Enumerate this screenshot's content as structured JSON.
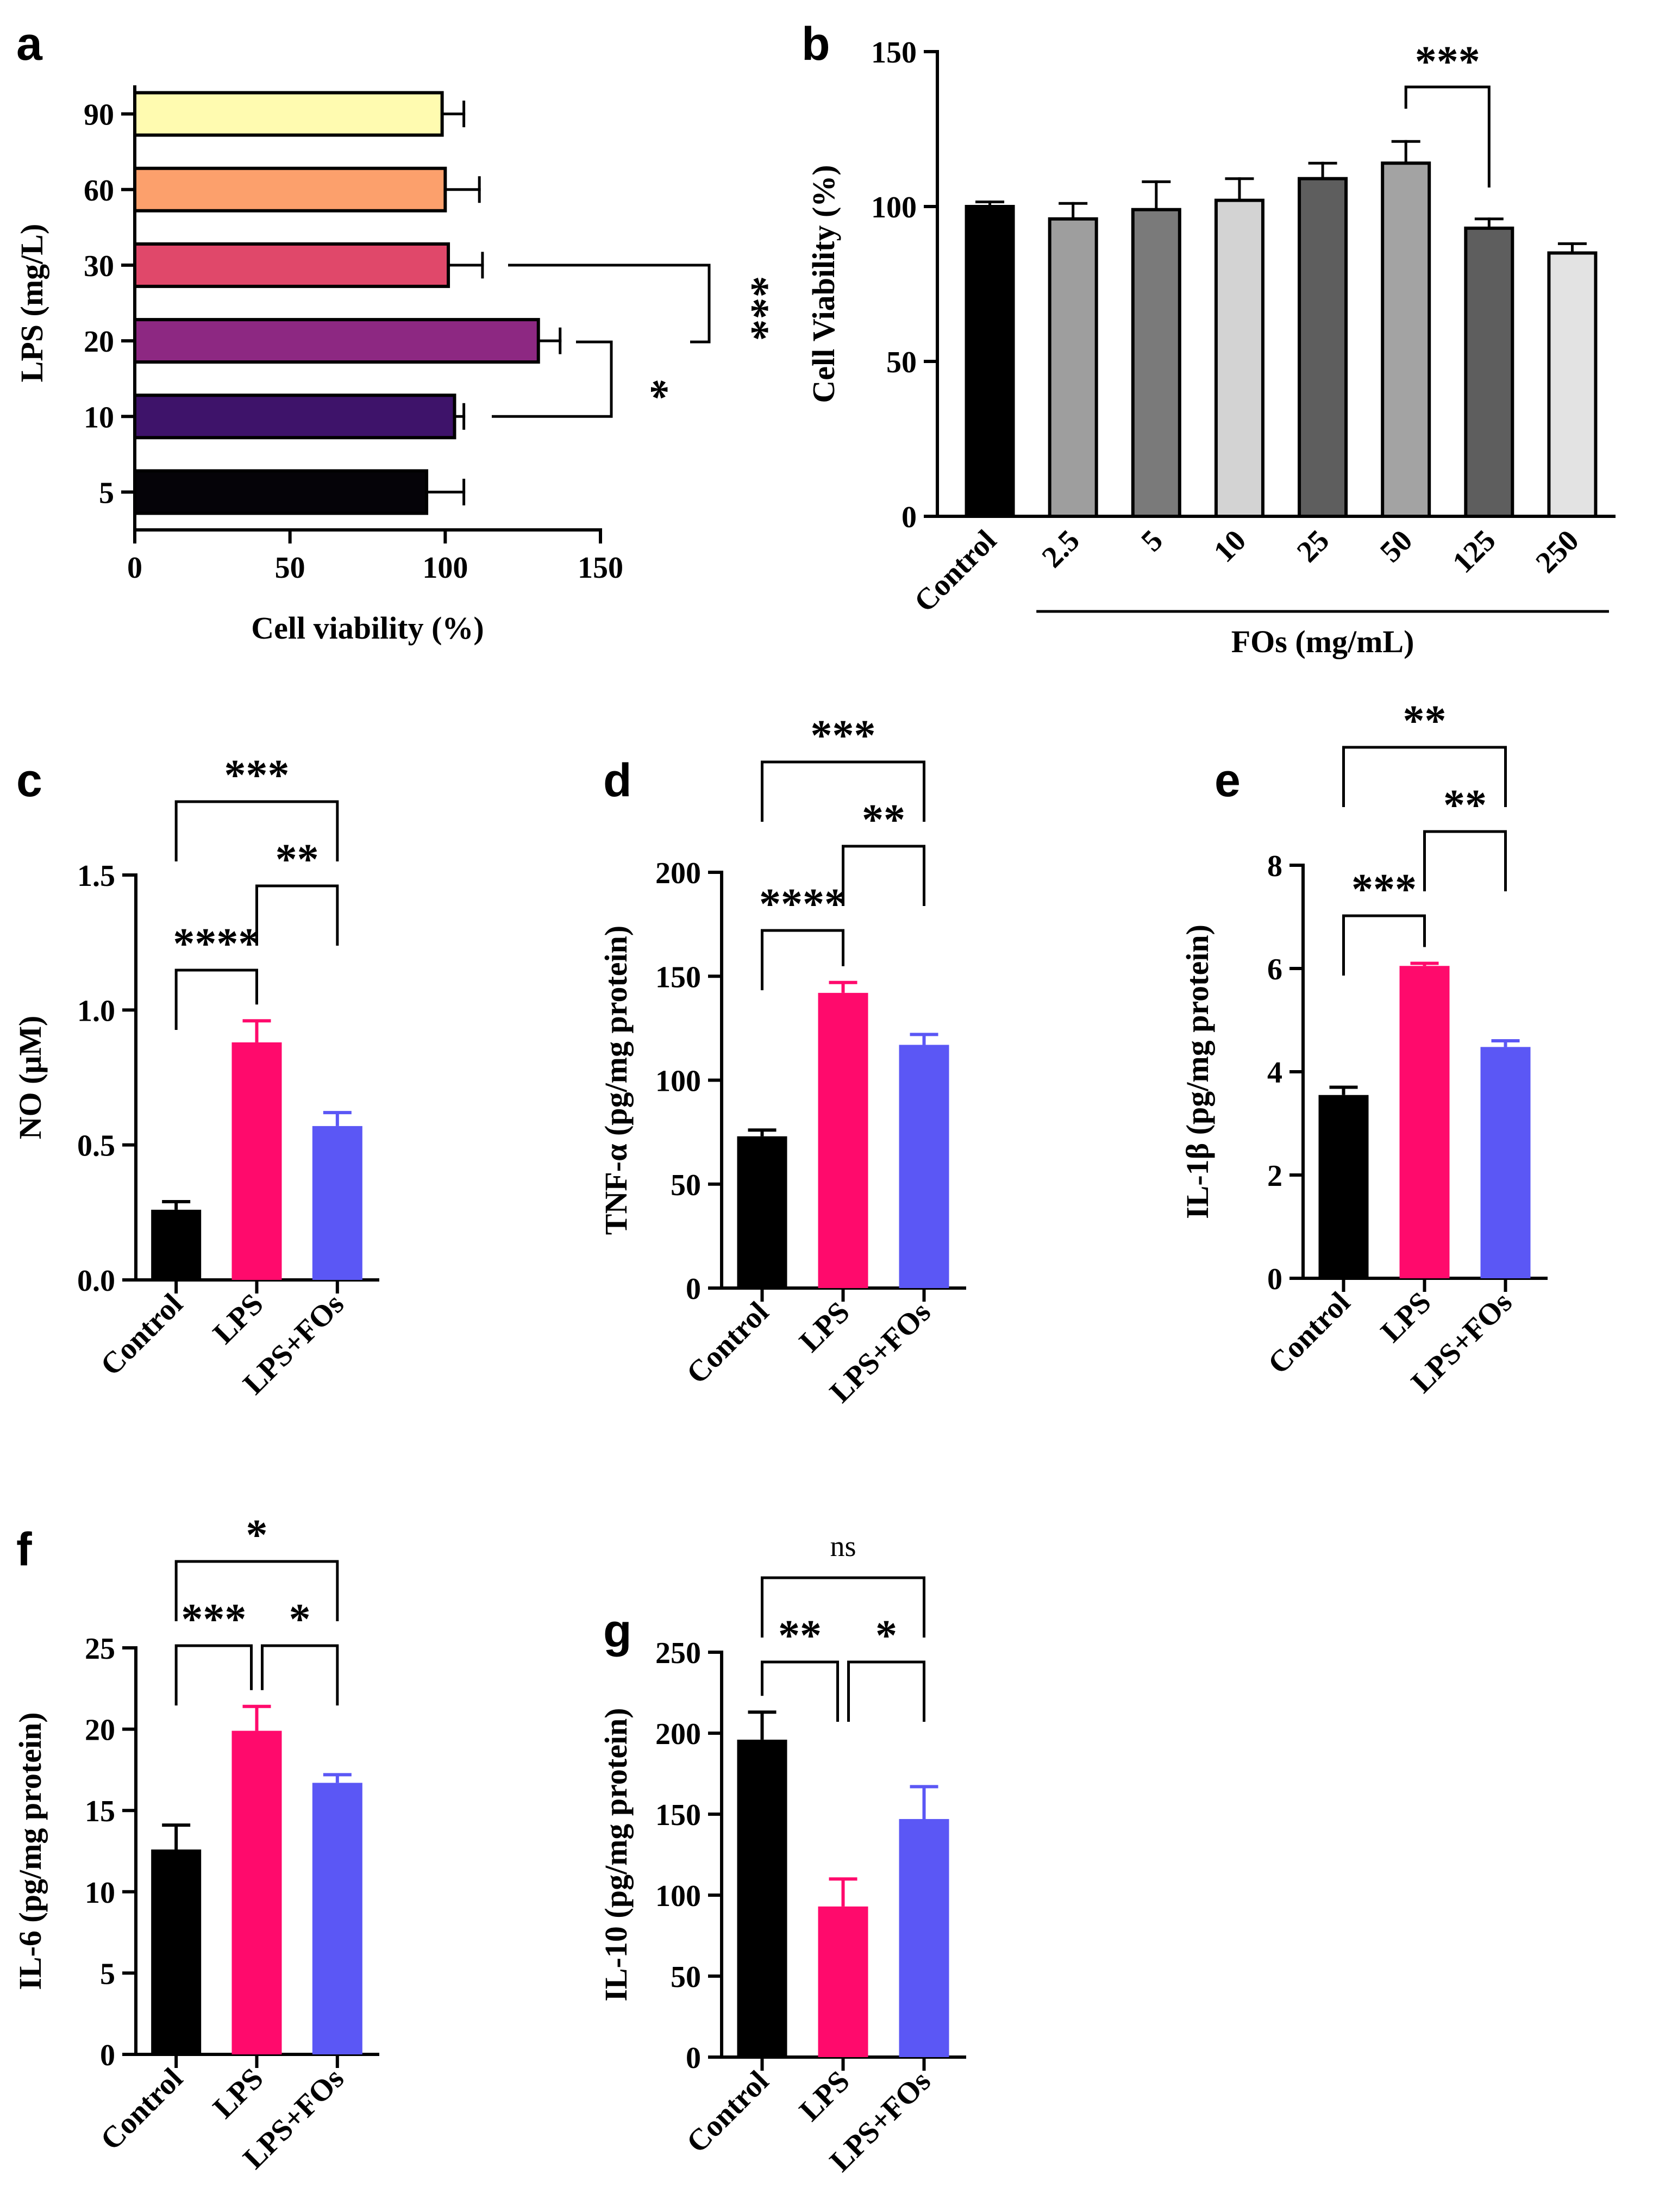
{
  "chart_data": [
    {
      "panel": "a",
      "type": "bar",
      "orientation": "horizontal",
      "title": "",
      "xlabel": "Cell viability (%)",
      "ylabel": "LPS (mg/L)",
      "xlim": [
        0,
        150
      ],
      "xticks": [
        "0",
        "50",
        "100",
        "150"
      ],
      "categories": [
        "90",
        "60",
        "30",
        "20",
        "10",
        "5"
      ],
      "values": [
        99,
        100,
        101,
        130,
        103,
        94
      ],
      "errors": [
        7,
        11,
        11,
        7,
        3,
        12
      ],
      "colors": [
        "#FFFBB0",
        "#FCA06C",
        "#E0486A",
        "#8D2882",
        "#3E136A",
        "#050308"
      ],
      "significance": [
        {
          "from": "30",
          "to": "20",
          "label": "***"
        },
        {
          "from": "20",
          "to": "10",
          "label": "*"
        }
      ]
    },
    {
      "panel": "b",
      "type": "bar",
      "title": "",
      "xlabel": "FOs (mg/mL)",
      "ylabel": "Cell Viability (%)",
      "ylim": [
        0,
        150
      ],
      "yticks": [
        "0",
        "50",
        "100",
        "150"
      ],
      "categories": [
        "Control",
        "2.5",
        "5",
        "10",
        "25",
        "50",
        "125",
        "250"
      ],
      "values": [
        100,
        96,
        99,
        102,
        109,
        114,
        93,
        85
      ],
      "errors": [
        1.5,
        5,
        9,
        7,
        5,
        7,
        3,
        3
      ],
      "colors": [
        "#000000",
        "#9E9E9E",
        "#7A7A7A",
        "#D3D3D3",
        "#5E5E5E",
        "#A3A3A3",
        "#5E5E5E",
        "#E3E3E3"
      ],
      "significance": [
        {
          "from": "50",
          "to": "125",
          "label": "***"
        }
      ]
    },
    {
      "panel": "c",
      "type": "bar",
      "title": "",
      "ylabel": "NO (μM)",
      "ylim": [
        0,
        1.5
      ],
      "yticks": [
        "0.0",
        "0.5",
        "1.0",
        "1.5"
      ],
      "categories": [
        "Control",
        "LPS",
        "LPS+FOs"
      ],
      "values": [
        0.26,
        0.88,
        0.57
      ],
      "errors": [
        0.03,
        0.08,
        0.05
      ],
      "colors": [
        "#000000",
        "#FF0A6C",
        "#5B57F5"
      ],
      "significance": [
        {
          "from": "Control",
          "to": "LPS+FOs",
          "label": "***",
          "level": 2
        },
        {
          "from": "LPS",
          "to": "LPS+FOs",
          "label": "**",
          "level": 1
        },
        {
          "from": "Control",
          "to": "LPS",
          "label": "****",
          "level": 0
        }
      ]
    },
    {
      "panel": "d",
      "type": "bar",
      "title": "",
      "ylabel": "TNF-α (pg/mg protein)",
      "ylim": [
        0,
        200
      ],
      "yticks": [
        "0",
        "50",
        "100",
        "150",
        "200"
      ],
      "categories": [
        "Control",
        "LPS",
        "LPS+FOs"
      ],
      "values": [
        73,
        142,
        117
      ],
      "errors": [
        3,
        5,
        5
      ],
      "colors": [
        "#000000",
        "#FF0A6C",
        "#5B57F5"
      ],
      "significance": [
        {
          "from": "Control",
          "to": "LPS+FOs",
          "label": "***",
          "level": 2
        },
        {
          "from": "LPS",
          "to": "LPS+FOs",
          "label": "**",
          "level": 1
        },
        {
          "from": "Control",
          "to": "LPS",
          "label": "****",
          "level": 0
        }
      ]
    },
    {
      "panel": "e",
      "type": "bar",
      "title": "",
      "ylabel": "IL-1β (pg/mg protein)",
      "ylim": [
        0,
        8
      ],
      "yticks": [
        "0",
        "2",
        "4",
        "6",
        "8"
      ],
      "categories": [
        "Control",
        "LPS",
        "LPS+FOs"
      ],
      "values": [
        3.55,
        6.05,
        4.48
      ],
      "errors": [
        0.15,
        0.05,
        0.12
      ],
      "colors": [
        "#000000",
        "#FF0A6C",
        "#5B57F5"
      ],
      "significance": [
        {
          "from": "Control",
          "to": "LPS+FOs",
          "label": "**",
          "level": 2
        },
        {
          "from": "LPS",
          "to": "LPS+FOs",
          "label": "**",
          "level": 1
        },
        {
          "from": "Control",
          "to": "LPS",
          "label": "***",
          "level": 0
        }
      ]
    },
    {
      "panel": "f",
      "type": "bar",
      "title": "",
      "ylabel": "IL-6 (pg/mg protein)",
      "ylim": [
        0,
        25
      ],
      "yticks": [
        "0",
        "5",
        "10",
        "15",
        "20",
        "25"
      ],
      "categories": [
        "Control",
        "LPS",
        "LPS+FOs"
      ],
      "values": [
        12.6,
        19.9,
        16.7
      ],
      "errors": [
        1.5,
        1.5,
        0.5
      ],
      "colors": [
        "#000000",
        "#FF0A6C",
        "#5B57F5"
      ],
      "significance": [
        {
          "from": "Control",
          "to": "LPS+FOs",
          "label": "*",
          "level": 1
        },
        {
          "from": "Control",
          "to": "LPS",
          "label": "***",
          "level": 0
        },
        {
          "from": "LPS",
          "to": "LPS+FOs",
          "label": "*",
          "level": 0
        }
      ]
    },
    {
      "panel": "g",
      "type": "bar",
      "title": "",
      "ylabel": "IL-10 (pg/mg protein)",
      "ylim": [
        0,
        250
      ],
      "yticks": [
        "0",
        "50",
        "100",
        "150",
        "200",
        "250"
      ],
      "categories": [
        "Control",
        "LPS",
        "LPS+FOs"
      ],
      "values": [
        196,
        93,
        147
      ],
      "errors": [
        17,
        17,
        20
      ],
      "colors": [
        "#000000",
        "#FF0A6C",
        "#5B57F5"
      ],
      "significance": [
        {
          "from": "Control",
          "to": "LPS+FOs",
          "label": "ns",
          "level": 1
        },
        {
          "from": "Control",
          "to": "LPS",
          "label": "**",
          "level": 0
        },
        {
          "from": "LPS",
          "to": "LPS+FOs",
          "label": "*",
          "level": 0
        }
      ]
    }
  ]
}
